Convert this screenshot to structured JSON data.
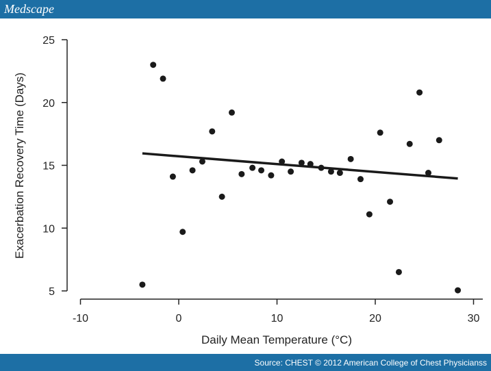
{
  "header": {
    "logo": "Medscape"
  },
  "footer": {
    "source": "Source: CHEST © 2012 American College of Chest Physicianss"
  },
  "chart_data": {
    "type": "scatter",
    "title": "",
    "xlabel": "Daily Mean Temperature (°C)",
    "xlabel_main": "Daily Mean Temperature (",
    "xlabel_sup": "O",
    "xlabel_end": "C)",
    "ylabel": "Exacerbation Recovery Time (Days)",
    "xlim": [
      -10,
      30
    ],
    "ylim": [
      5,
      25
    ],
    "xticks": [
      -10,
      0,
      10,
      20,
      30
    ],
    "yticks": [
      5,
      10,
      15,
      20,
      25
    ],
    "grid": false,
    "points": [
      [
        -3.7,
        5.5
      ],
      [
        -2.6,
        23.0
      ],
      [
        -1.6,
        21.9
      ],
      [
        -0.6,
        14.1
      ],
      [
        0.4,
        9.7
      ],
      [
        1.4,
        14.6
      ],
      [
        2.4,
        15.3
      ],
      [
        3.4,
        17.7
      ],
      [
        4.4,
        12.5
      ],
      [
        5.4,
        19.2
      ],
      [
        6.4,
        14.3
      ],
      [
        7.5,
        14.8
      ],
      [
        8.4,
        14.6
      ],
      [
        9.4,
        14.2
      ],
      [
        10.5,
        15.3
      ],
      [
        11.4,
        14.5
      ],
      [
        12.5,
        15.2
      ],
      [
        13.4,
        15.1
      ],
      [
        14.5,
        14.8
      ],
      [
        15.5,
        14.5
      ],
      [
        16.4,
        14.4
      ],
      [
        17.5,
        15.5
      ],
      [
        18.5,
        13.9
      ],
      [
        19.4,
        11.1
      ],
      [
        20.5,
        17.6
      ],
      [
        21.5,
        12.1
      ],
      [
        22.4,
        6.5
      ],
      [
        23.5,
        16.7
      ],
      [
        24.5,
        20.8
      ],
      [
        25.4,
        14.4
      ],
      [
        26.5,
        17.0
      ],
      [
        28.4,
        5.05
      ]
    ],
    "trend_line": {
      "x": [
        -3.7,
        28.4
      ],
      "y": [
        15.95,
        13.95
      ]
    },
    "colors": {
      "points": "#1a1a1a",
      "header": "#1d6fa5"
    }
  }
}
